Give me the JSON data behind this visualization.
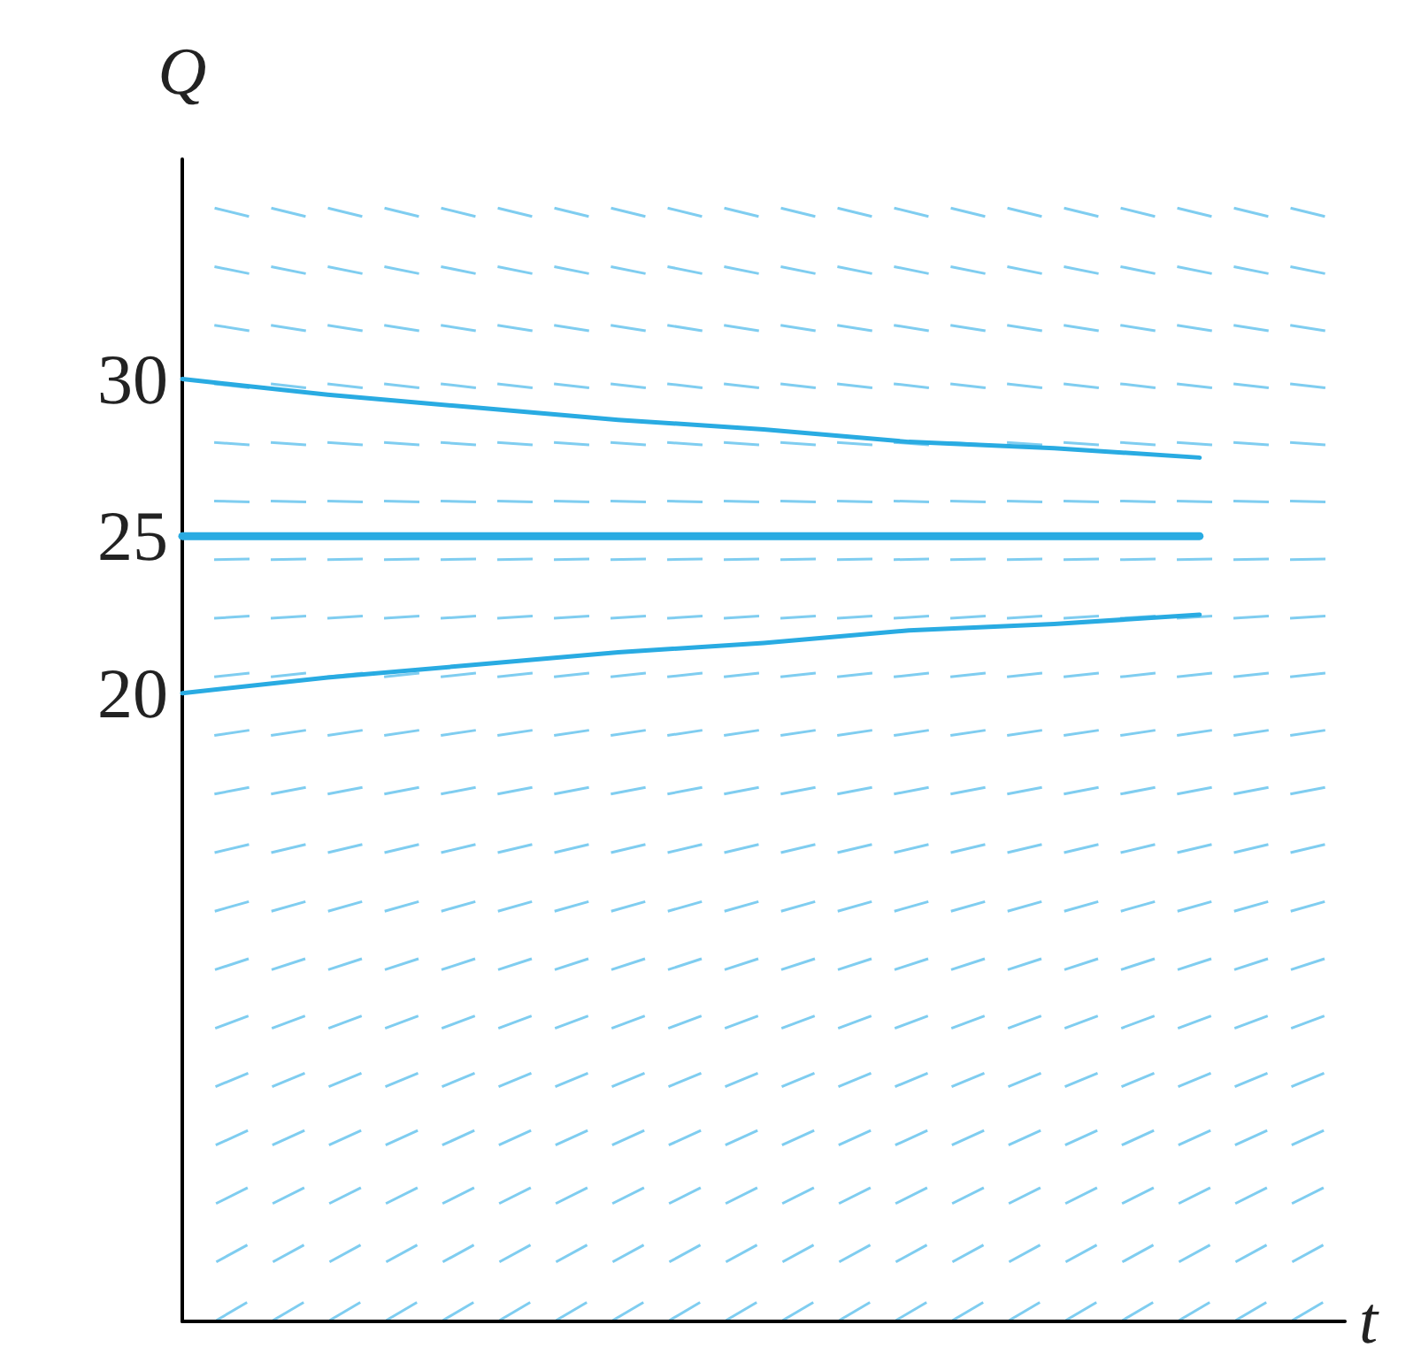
{
  "chart_data": {
    "type": "line",
    "xlabel": "t",
    "ylabel": "Q",
    "categories": [
      null,
      null,
      null,
      null,
      null,
      null,
      null,
      null,
      null
    ],
    "series": [
      {
        "color": "#29abe2",
        "values": [
          30,
          29.5,
          29.1,
          28.7,
          28.4,
          28.0,
          27.8,
          27.5,
          null
        ]
      },
      {
        "color": "#29abe2",
        "values": [
          25,
          25,
          25,
          25,
          25,
          25,
          25,
          25,
          null
        ]
      },
      {
        "color": "#29abe2",
        "values": [
          20,
          20.5,
          20.9,
          21.3,
          21.6,
          22.0,
          22.2,
          22.5,
          null
        ]
      }
    ],
    "ylim": [
      0,
      37
    ],
    "yticks": [
      20,
      25,
      30
    ],
    "grid": false,
    "marker": "none",
    "line_style": "solid",
    "tick_labels": "y"
  }
}
